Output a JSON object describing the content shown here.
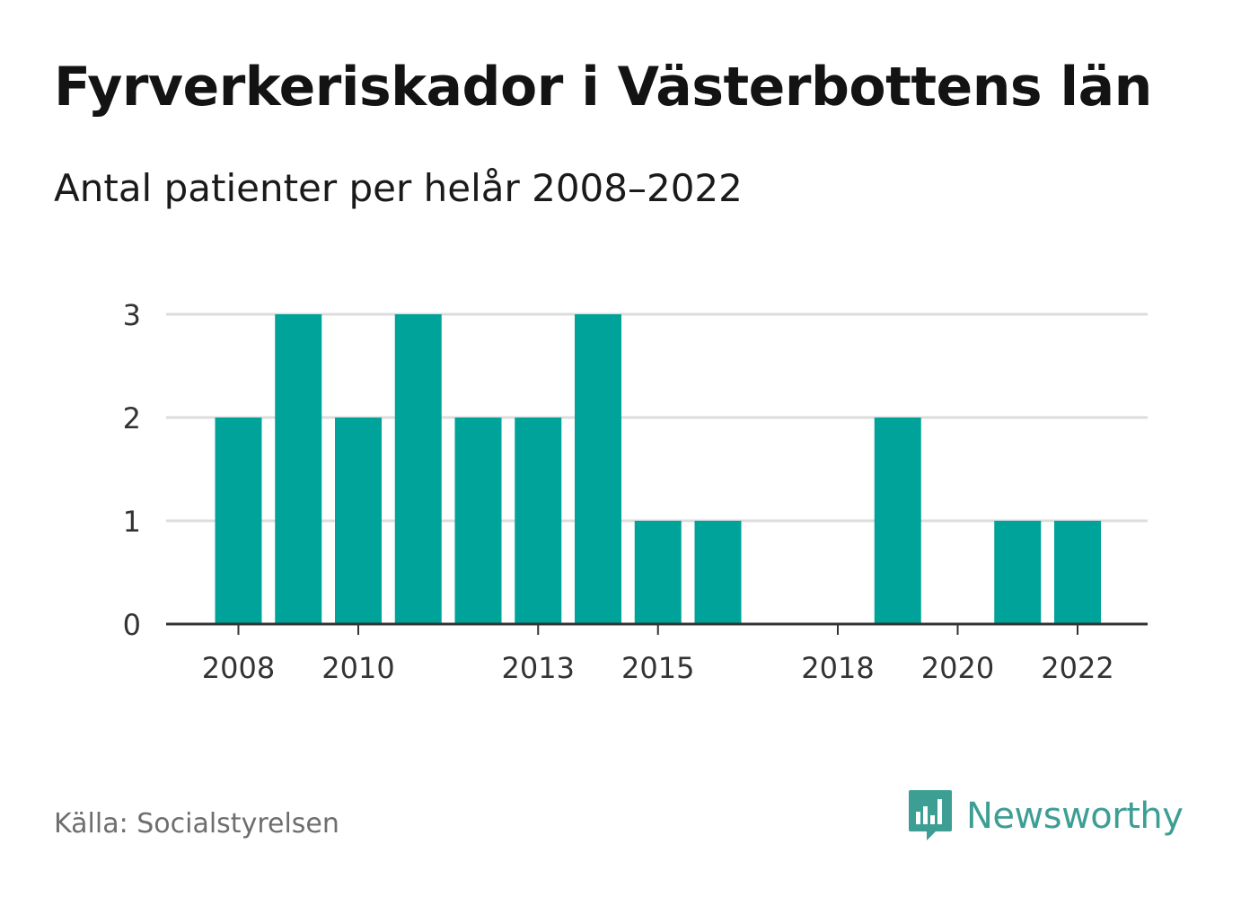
{
  "header": {
    "title": "Fyrverkeriskador i Västerbottens län",
    "subtitle": "Antal patienter per helår 2008–2022"
  },
  "footer": {
    "source": "Källa: Socialstyrelsen",
    "brand": "Newsworthy",
    "brand_icon": "bar-chart-speech-bubble-icon"
  },
  "colors": {
    "bar": "#00a39a",
    "grid": "#dcdcdc",
    "axis": "#333333",
    "brand": "#3d9e94"
  },
  "chart_data": {
    "type": "bar",
    "categories": [
      2008,
      2009,
      2010,
      2011,
      2012,
      2013,
      2014,
      2015,
      2016,
      2017,
      2018,
      2019,
      2020,
      2021,
      2022
    ],
    "values": [
      2,
      3,
      2,
      3,
      2,
      2,
      3,
      1,
      1,
      0,
      0,
      2,
      0,
      1,
      1
    ],
    "xticks": [
      "2008",
      "2010",
      "2013",
      "2015",
      "2018",
      "2020",
      "2022"
    ],
    "yticks": [
      "0",
      "1",
      "2",
      "3"
    ],
    "ylim": [
      0,
      3
    ],
    "xlabel": "",
    "ylabel": "",
    "grid": true,
    "legend": "none"
  }
}
